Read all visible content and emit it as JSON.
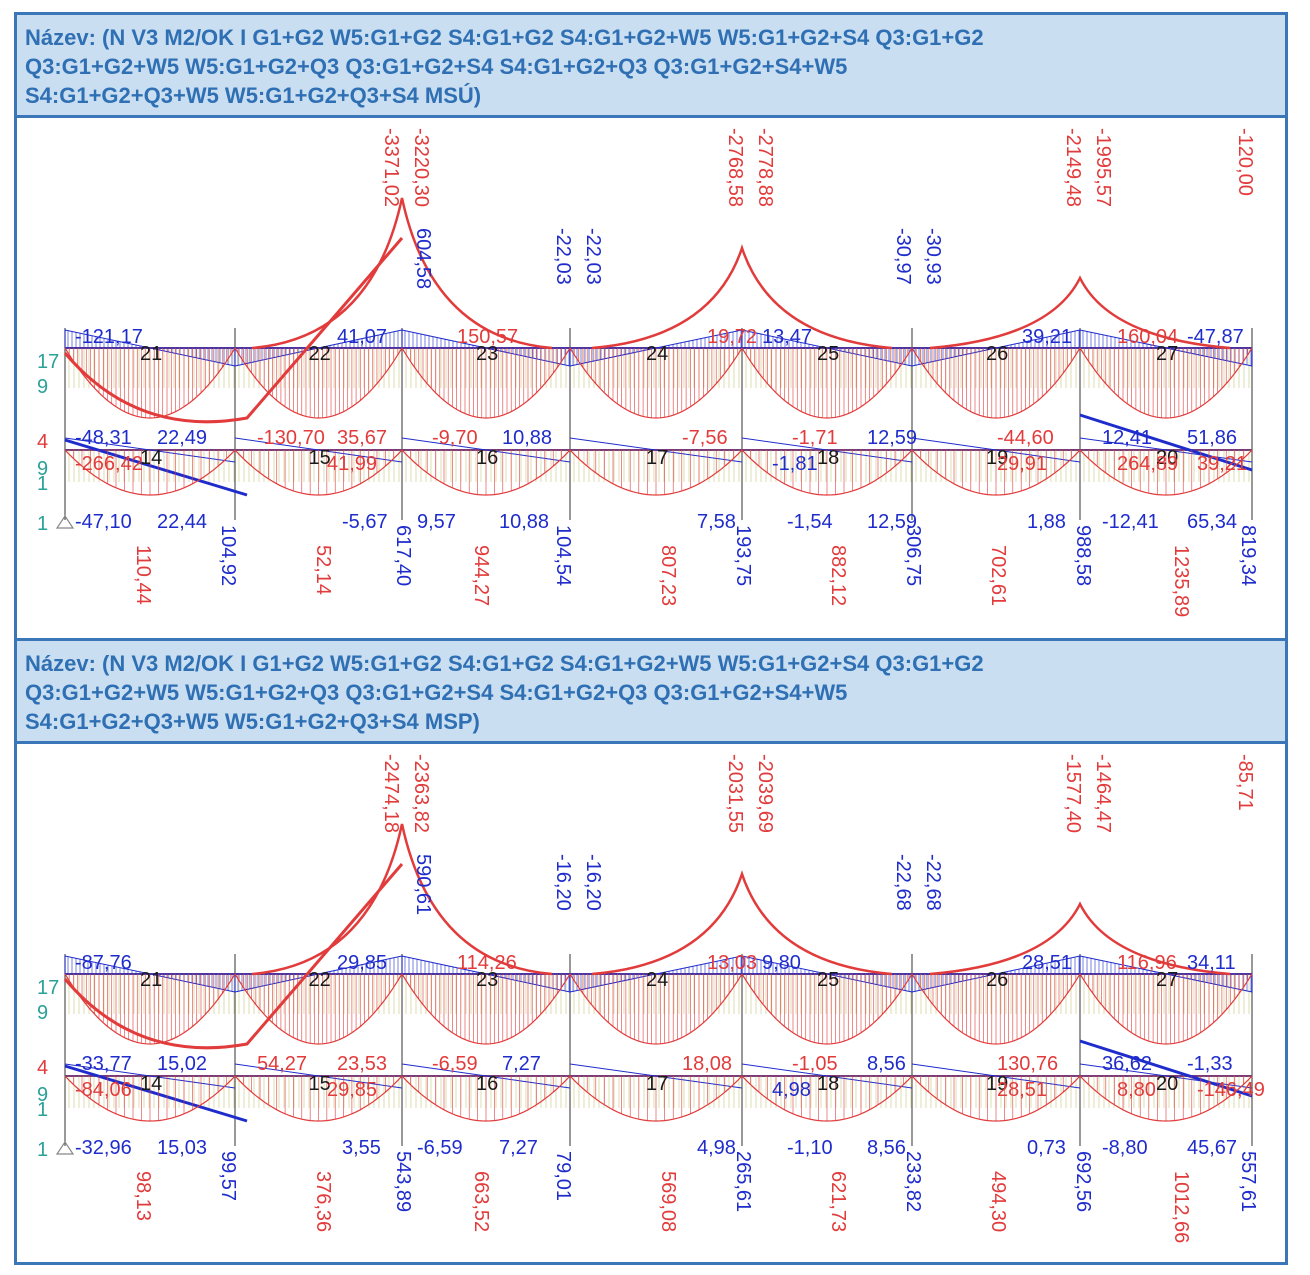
{
  "colors": {
    "frame": "#3a76b8",
    "title_bg": "#c9def0",
    "title_text": "#2f6fb4",
    "moment": "#e23b3b",
    "shear": "#1f2ccc",
    "axial": "#b3b34a",
    "node_label": "#1a1a1a",
    "support": "#2aa198"
  },
  "panels": [
    {
      "title_lines": [
        "Název: (N V3 M2/OK I G1+G2 W5:G1+G2 S4:G1+G2 S4:G1+G2+W5 W5:G1+G2+S4 Q3:G1+G2",
        "Q3:G1+G2+W5 W5:G1+G2+Q3 Q3:G1+G2+S4 S4:G1+G2+Q3 Q3:G1+G2+S4+W5",
        "S4:G1+G2+Q3+W5 W5:G1+G2+Q3+S4 MSÚ)"
      ],
      "top_nodes": [
        "21",
        "22",
        "23",
        "24",
        "25",
        "26",
        "27"
      ],
      "bottom_nodes": [
        "14",
        "15",
        "16",
        "17",
        "18",
        "19",
        "20"
      ],
      "support_labels": [
        "17",
        "9",
        "4",
        "9",
        "1",
        "1"
      ],
      "peak_labels": [
        "-3371,02",
        "-3220,30",
        "-2768,58",
        "-2778,88",
        "-2149,48",
        "-1995,57",
        "-120,00"
      ],
      "top_values_red": [
        "150,57",
        "19,72",
        "160,04"
      ],
      "top_values_blue": [
        "-121,17",
        "41,07",
        "-22,03",
        "-22,03",
        "13,47",
        "-30,97",
        "-30,93",
        "39,21",
        "-47,87",
        "604,58"
      ],
      "mid_values_red": [
        "-130,70",
        "35,67",
        "-9,70",
        "-7,56",
        "-1,71",
        "-44,60",
        "-266,42",
        "41,99",
        "29,91",
        "39,21",
        "264,89"
      ],
      "mid_values_blue": [
        "-48,31",
        "22,49",
        "10,88",
        "12,59",
        "12,41",
        "51,86",
        "-1,81"
      ],
      "bottom_values_blue": [
        "-47,10",
        "22,44",
        "-5,67",
        "9,57",
        "10,88",
        "7,58",
        "-1,54",
        "12,59",
        "1,88",
        "-12,41",
        "65,34"
      ],
      "rotated_red": [
        "110,44",
        "52,14",
        "944,27",
        "807,23",
        "882,12",
        "702,61",
        "1235,89"
      ],
      "rotated_blue": [
        "104,92",
        "617,40",
        "104,54",
        "193,75",
        "306,75",
        "988,58",
        "819,34"
      ]
    },
    {
      "title_lines": [
        "Název: (N V3 M2/OK I G1+G2 W5:G1+G2 S4:G1+G2 S4:G1+G2+W5 W5:G1+G2+S4 Q3:G1+G2",
        "Q3:G1+G2+W5 W5:G1+G2+Q3 Q3:G1+G2+S4 S4:G1+G2+Q3 Q3:G1+G2+S4+W5",
        "S4:G1+G2+Q3+W5 W5:G1+G2+Q3+S4 MSP)"
      ],
      "top_nodes": [
        "21",
        "22",
        "23",
        "24",
        "25",
        "26",
        "27"
      ],
      "bottom_nodes": [
        "14",
        "15",
        "16",
        "17",
        "18",
        "19",
        "20"
      ],
      "support_labels": [
        "17",
        "9",
        "4",
        "9",
        "1",
        "1"
      ],
      "peak_labels": [
        "-2474,18",
        "-2363,82",
        "-2031,55",
        "-2039,69",
        "-1577,40",
        "-1464,47",
        "-85,71"
      ],
      "top_values_red": [
        "114,26",
        "13,03",
        "116,96"
      ],
      "top_values_blue": [
        "-87,76",
        "29,85",
        "-16,20",
        "-16,20",
        "9,80",
        "-22,68",
        "-22,68",
        "28,51",
        "34,11",
        "590,61"
      ],
      "mid_values_red": [
        "54,27",
        "23,53",
        "-6,59",
        "18,08",
        "-1,05",
        "130,76",
        "-84,06",
        "29,85",
        "28,51",
        "-146,49",
        "8,80"
      ],
      "mid_values_blue": [
        "-33,77",
        "15,02",
        "7,27",
        "8,56",
        "36,62",
        "-1,33",
        "4,98"
      ],
      "bottom_values_blue": [
        "-32,96",
        "15,03",
        "3,55",
        "-6,59",
        "7,27",
        "4,98",
        "-1,10",
        "8,56",
        "0,73",
        "-8,80",
        "45,67"
      ],
      "rotated_red": [
        "98,13",
        "376,36",
        "663,52",
        "569,08",
        "621,73",
        "494,30",
        "1012,66"
      ],
      "rotated_blue": [
        "99,57",
        "543,89",
        "79,01",
        "265,61",
        "233,82",
        "692,56",
        "557,61"
      ]
    }
  ]
}
